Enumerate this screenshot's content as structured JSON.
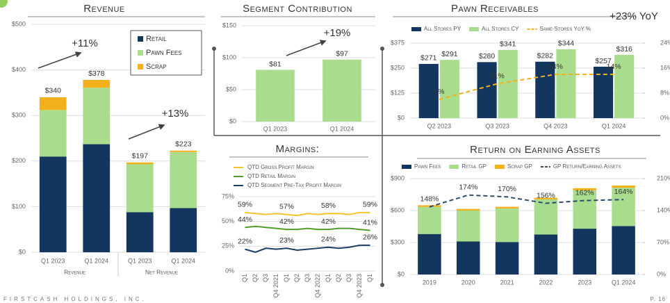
{
  "chart_data": [
    {
      "type": "bar",
      "stacked": true,
      "title": "Revenue",
      "categories": [
        "Q1 2023",
        "Q1 2024",
        "Q1 2023",
        "Q1 2024"
      ],
      "groups": [
        "Revenue",
        "Net Revenue"
      ],
      "series": [
        {
          "name": "Retail",
          "color": "#12365e",
          "values": [
            210,
            237,
            88,
            97
          ]
        },
        {
          "name": "Pawn Fees",
          "color": "#a9dc8c",
          "values": [
            102,
            124,
            105,
            123
          ]
        },
        {
          "name": "Scrap",
          "color": "#f2b01c",
          "values": [
            28,
            17,
            4,
            3
          ]
        }
      ],
      "totals": [
        340,
        378,
        197,
        223
      ],
      "total_labels": [
        "$340",
        "$378",
        "$197",
        "$223"
      ],
      "ylim": [
        0,
        500
      ],
      "yticks": [
        {
          "value": 0,
          "label": "$0"
        },
        {
          "value": 100,
          "label": "$100"
        },
        {
          "value": 200,
          "label": "$200"
        },
        {
          "value": 300,
          "label": "$300"
        },
        {
          "value": 400,
          "label": "$400"
        },
        {
          "value": 500,
          "label": "$500"
        }
      ],
      "grid": true,
      "legend": "upper right",
      "annotations": [
        "+11%",
        "+13%"
      ]
    },
    {
      "type": "bar",
      "title": "Segment Contribution",
      "categories": [
        "Q1 2023",
        "Q1 2024"
      ],
      "values": [
        81,
        97
      ],
      "value_labels": [
        "$81",
        "$97"
      ],
      "color": "#a9dc8c",
      "ylim": [
        0,
        150
      ],
      "yticks": [
        {
          "value": 0,
          "label": "$0"
        },
        {
          "value": 50,
          "label": "$50"
        },
        {
          "value": 100,
          "label": "$100"
        },
        {
          "value": 150,
          "label": "$150"
        }
      ],
      "grid": true,
      "annotations": [
        "+19%"
      ]
    },
    {
      "type": "bar",
      "title": "Pawn Receivables",
      "categories": [
        "Q2 2023",
        "Q3 2023",
        "Q4 2023",
        "Q1 2024"
      ],
      "series": [
        {
          "name": "All Stores PY",
          "color": "#12365e",
          "values": [
            271,
            280,
            282,
            257
          ],
          "value_labels": [
            "$271",
            "$280",
            "$282",
            "$257"
          ]
        },
        {
          "name": "All Stores CY",
          "color": "#a9dc8c",
          "values": [
            291,
            341,
            344,
            316
          ],
          "value_labels": [
            "$291",
            "$341",
            "$344",
            "$316"
          ]
        },
        {
          "name": "Same-Stores YoY %",
          "color": "#f2b01c",
          "axis": "y2",
          "style": "dashed",
          "values": [
            6,
            11,
            14,
            14
          ],
          "value_labels": [
            "6%",
            "11%",
            "14%",
            "14%"
          ]
        }
      ],
      "ylim": [
        0,
        375
      ],
      "yticks": [
        {
          "value": 0,
          "label": "$0"
        },
        {
          "value": 125,
          "label": "$125"
        },
        {
          "value": 250,
          "label": "$250"
        },
        {
          "value": 375,
          "label": "$375"
        }
      ],
      "y2lim": [
        0,
        24
      ],
      "y2ticks": [
        {
          "value": 0,
          "label": "0%"
        },
        {
          "value": 8,
          "label": "8%"
        },
        {
          "value": 16,
          "label": "16%"
        },
        {
          "value": 24,
          "label": "24%"
        }
      ],
      "grid": true,
      "legend": "top",
      "annotations": [
        "+23% YoY"
      ]
    },
    {
      "type": "line",
      "title": "Margins:",
      "categories": [
        "Q1",
        "Q2",
        "Q3",
        "Q4 2021",
        "Q1",
        "Q2",
        "Q3",
        "Q4 2022",
        "Q1",
        "Q2",
        "Q3",
        "Q4 2023",
        "Q1"
      ],
      "series": [
        {
          "name": "QTD Gross Profit Margin",
          "color": "#f5c22b",
          "values": [
            59,
            58,
            57,
            58,
            57,
            56,
            58,
            57,
            58,
            58,
            57,
            59,
            59
          ],
          "value_labels": [
            "59%",
            null,
            null,
            null,
            "57%",
            null,
            null,
            null,
            "58%",
            null,
            null,
            null,
            "59%"
          ]
        },
        {
          "name": "QTD Retail Margin",
          "color": "#4f9d2a",
          "values": [
            44,
            45,
            44,
            43,
            42,
            42,
            43,
            42,
            42,
            43,
            43,
            42,
            41
          ],
          "value_labels": [
            "44%",
            null,
            null,
            null,
            "42%",
            null,
            null,
            null,
            "42%",
            null,
            null,
            null,
            "41%"
          ]
        },
        {
          "name": "QTD Segment Pre-Tax Profit Margin",
          "color": "#1d3d66",
          "values": [
            22,
            19,
            23,
            22,
            23,
            21,
            22,
            23,
            24,
            23,
            24,
            26,
            26
          ],
          "value_labels": [
            "22%",
            null,
            null,
            null,
            "23%",
            null,
            null,
            null,
            "24%",
            null,
            null,
            null,
            "26%"
          ]
        }
      ],
      "ylim": [
        0,
        75
      ],
      "yticks": [
        {
          "value": 0,
          "label": "0%"
        },
        {
          "value": 25,
          "label": "25%"
        },
        {
          "value": 50,
          "label": "50%"
        },
        {
          "value": 75,
          "label": "75%"
        }
      ],
      "grid": true,
      "legend": "upper left"
    },
    {
      "type": "bar",
      "stacked": true,
      "title": "Return on Earning Assets",
      "categories": [
        "2019",
        "2020",
        "2021",
        "2022",
        "2023",
        "Q1 2024"
      ],
      "series": [
        {
          "name": "Pawn Fees",
          "color": "#12365e",
          "values": [
            380,
            310,
            305,
            375,
            430,
            455
          ]
        },
        {
          "name": "Retail GP",
          "color": "#a9dc8c",
          "values": [
            255,
            290,
            315,
            330,
            360,
            360
          ]
        },
        {
          "name": "Scrap GP",
          "color": "#f2b01c",
          "values": [
            15,
            15,
            15,
            15,
            20,
            20
          ]
        },
        {
          "name": "GP Return/Earning Assets",
          "color": "#2c4a6e",
          "axis": "y2",
          "style": "dashed",
          "values": [
            148,
            174,
            170,
            156,
            162,
            164
          ],
          "value_labels": [
            "148%",
            "174%",
            "170%",
            "156%",
            "162%",
            "164%"
          ]
        }
      ],
      "ylim": [
        0,
        900
      ],
      "yticks": [
        {
          "value": 0,
          "label": "$0"
        },
        {
          "value": 300,
          "label": "$300"
        },
        {
          "value": 600,
          "label": "$600"
        },
        {
          "value": 900,
          "label": "$900"
        }
      ],
      "y2lim": [
        0,
        210
      ],
      "y2ticks": [
        {
          "value": 0,
          "label": "0%"
        },
        {
          "value": 70,
          "label": "70%"
        },
        {
          "value": 140,
          "label": "140%"
        },
        {
          "value": 210,
          "label": "210%"
        }
      ],
      "grid": true,
      "legend": "top"
    }
  ],
  "footer": {
    "company": "FIRSTCASH HOLDINGS, INC.",
    "page": "P. 16"
  }
}
